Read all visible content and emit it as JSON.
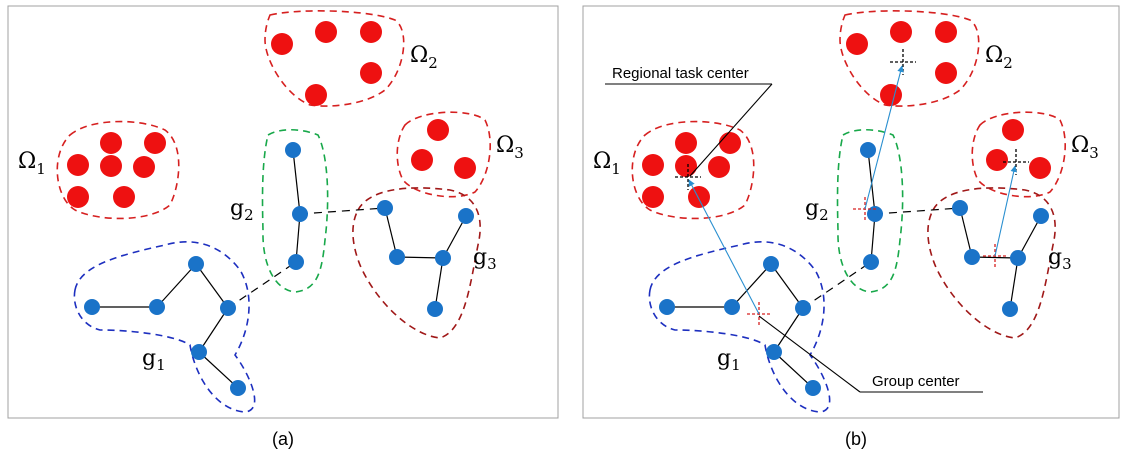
{
  "panels": [
    {
      "caption": "(a)",
      "labels": {
        "omega1": "Ω",
        "omega1_sub": "1",
        "omega2": "Ω",
        "omega2_sub": "2",
        "omega3": "Ω",
        "omega3_sub": "3",
        "g1": "g",
        "g1_sub": "1",
        "g2": "g",
        "g2_sub": "2",
        "g3": "g",
        "g3_sub": "3"
      }
    },
    {
      "caption": "(b)",
      "labels": {
        "omega1": "Ω",
        "omega1_sub": "1",
        "omega2": "Ω",
        "omega2_sub": "2",
        "omega3": "Ω",
        "omega3_sub": "3",
        "g1": "g",
        "g1_sub": "1",
        "g2": "g",
        "g2_sub": "2",
        "g3": "g",
        "g3_sub": "3"
      },
      "callouts": {
        "regional_task_center": "Regional task center",
        "group_center": "Group center"
      }
    }
  ],
  "colors": {
    "task": "#ee1111",
    "task_region": "#d62020",
    "agent": "#1a73c8",
    "g1_boundary": "#1d2fbf",
    "g2_boundary": "#18a84a",
    "g3_boundary": "#a01818",
    "arrow": "#2a8fd0",
    "panel_border": "#a0a0a0"
  }
}
